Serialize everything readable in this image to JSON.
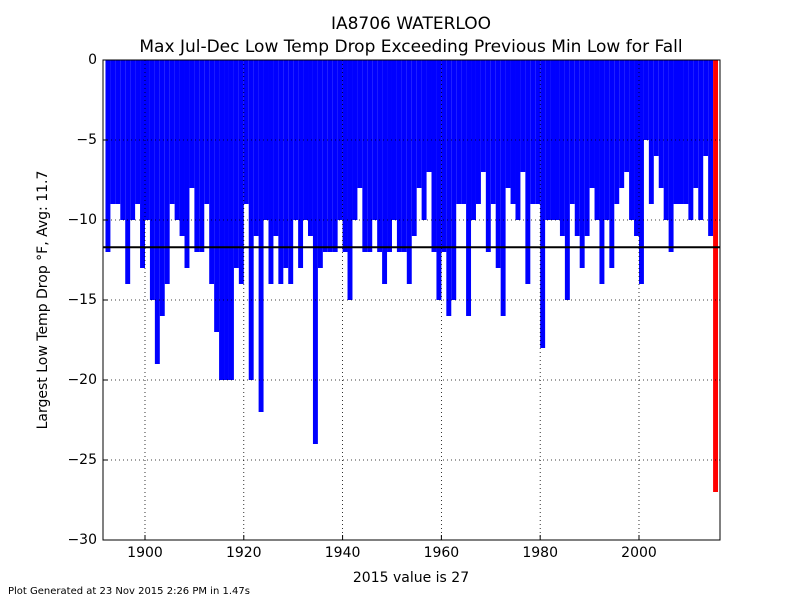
{
  "chart_data": {
    "type": "bar",
    "title": "IA8706 WATERLOO",
    "subtitle": "Max Jul-Dec Low Temp Drop Exceeding Previous Min Low for Fall",
    "ylabel": "Largest Low Temp Drop °F, Avg: 11.7",
    "xlabel": "2015 value is 27",
    "footnote": "Plot Generated at 23 Nov 2015 2:26 PM in 1.47s",
    "x": [
      1892,
      1893,
      1894,
      1895,
      1896,
      1897,
      1898,
      1899,
      1900,
      1901,
      1902,
      1903,
      1904,
      1905,
      1906,
      1907,
      1908,
      1909,
      1910,
      1911,
      1912,
      1913,
      1914,
      1915,
      1916,
      1917,
      1918,
      1919,
      1920,
      1921,
      1922,
      1923,
      1924,
      1925,
      1926,
      1927,
      1928,
      1929,
      1930,
      1931,
      1932,
      1933,
      1934,
      1935,
      1936,
      1937,
      1938,
      1939,
      1940,
      1941,
      1942,
      1943,
      1944,
      1945,
      1946,
      1947,
      1948,
      1949,
      1950,
      1951,
      1952,
      1953,
      1954,
      1955,
      1956,
      1957,
      1958,
      1959,
      1960,
      1961,
      1962,
      1963,
      1964,
      1965,
      1966,
      1967,
      1968,
      1969,
      1970,
      1971,
      1972,
      1973,
      1974,
      1975,
      1976,
      1977,
      1978,
      1979,
      1980,
      1981,
      1982,
      1983,
      1984,
      1985,
      1986,
      1987,
      1988,
      1989,
      1990,
      1991,
      1992,
      1993,
      1994,
      1995,
      1996,
      1997,
      1998,
      1999,
      2000,
      2001,
      2002,
      2003,
      2004,
      2005,
      2006,
      2007,
      2008,
      2009,
      2010,
      2011,
      2012,
      2013,
      2014,
      2015
    ],
    "values": [
      -12,
      -9,
      -9,
      -10,
      -14,
      -10,
      -9,
      -13,
      -10,
      -15,
      -19,
      -16,
      -14,
      -9,
      -10,
      -11,
      -13,
      -8,
      -12,
      -12,
      -9,
      -14,
      -17,
      -20,
      -20,
      -20,
      -13,
      -14,
      -9,
      -20,
      -11,
      -22,
      -10,
      -14,
      -11,
      -14,
      -13,
      -14,
      -10,
      -13,
      -10,
      -11,
      -24,
      -13,
      -12,
      -12,
      -12,
      -10,
      -12,
      -15,
      -10,
      -8,
      -12,
      -12,
      -10,
      -12,
      -14,
      -12,
      -10,
      -12,
      -12,
      -14,
      -11,
      -8,
      -10,
      -7,
      -12,
      -15,
      -12,
      -16,
      -15,
      -9,
      -9,
      -16,
      -10,
      -9,
      -7,
      -12,
      -9,
      -13,
      -16,
      -8,
      -9,
      -10,
      -7,
      -14,
      -9,
      -9,
      -18,
      -10,
      -10,
      -10,
      -11,
      -15,
      -9,
      -11,
      -13,
      -11,
      -8,
      -10,
      -14,
      -10,
      -13,
      -9,
      -8,
      -7,
      -10,
      -11,
      -14,
      -5,
      -9,
      -6,
      -8,
      -10,
      -12,
      -9,
      -9,
      -9,
      -10,
      -8,
      -10,
      -6,
      -11,
      -27
    ],
    "color": "#0000ff",
    "last_color": "#ff0000",
    "avg_line": -11.7,
    "xlim": [
      1891.5,
      2016.4
    ],
    "ylim": [
      -30,
      0
    ],
    "xticks": [
      1900,
      1920,
      1940,
      1960,
      1980,
      2000
    ],
    "yticks": [
      {
        "value": -30,
        "label": "−30"
      },
      {
        "value": -25,
        "label": "−25"
      },
      {
        "value": -20,
        "label": "−20"
      },
      {
        "value": -15,
        "label": "−15"
      },
      {
        "value": -10,
        "label": "−10"
      },
      {
        "value": -5,
        "label": "−5"
      },
      0
    ],
    "grid": true
  }
}
